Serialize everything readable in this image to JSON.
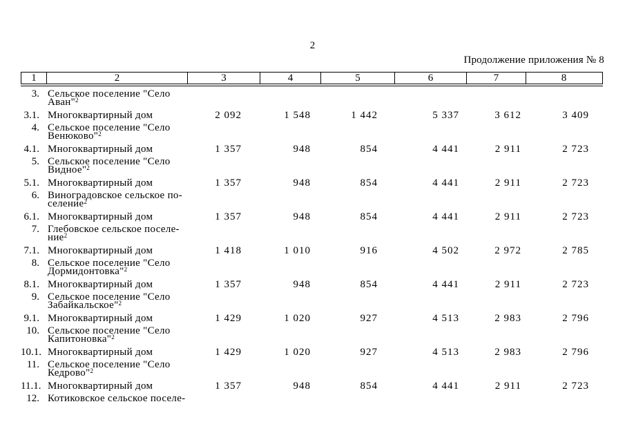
{
  "page": {
    "number": "2",
    "continuation_label": "Продолжение приложения № 8"
  },
  "table": {
    "header": [
      "1",
      "2",
      "3",
      "4",
      "5",
      "6",
      "7",
      "8"
    ],
    "rows": [
      {
        "num": "3.",
        "name_lines": [
          "Сельское поселение \"Село",
          "Аван\""
        ],
        "sup": "2",
        "values": []
      },
      {
        "num": "3.1.",
        "name_lines": [
          "Многоквартирный дом"
        ],
        "sup": "",
        "values": [
          "2 092",
          "1 548",
          "1 442",
          "5 337",
          "3 612",
          "3 409"
        ]
      },
      {
        "num": "4.",
        "name_lines": [
          "Сельское поселение \"Село",
          "Венюково\""
        ],
        "sup": "2",
        "values": []
      },
      {
        "num": "4.1.",
        "name_lines": [
          "Многоквартирный дом"
        ],
        "sup": "",
        "values": [
          "1 357",
          "948",
          "854",
          "4 441",
          "2 911",
          "2 723"
        ]
      },
      {
        "num": "5.",
        "name_lines": [
          "Сельское поселение \"Село",
          "Видное\""
        ],
        "sup": "2",
        "values": []
      },
      {
        "num": "5.1.",
        "name_lines": [
          "Многоквартирный дом"
        ],
        "sup": "",
        "values": [
          "1 357",
          "948",
          "854",
          "4 441",
          "2 911",
          "2 723"
        ]
      },
      {
        "num": "6.",
        "name_lines": [
          "Виноградовское сельское по-",
          "селение"
        ],
        "sup": "2",
        "values": []
      },
      {
        "num": "6.1.",
        "name_lines": [
          "Многоквартирный дом"
        ],
        "sup": "",
        "values": [
          "1 357",
          "948",
          "854",
          "4 441",
          "2 911",
          "2 723"
        ]
      },
      {
        "num": "7.",
        "name_lines": [
          "Глебовское сельское поселе-",
          "ние"
        ],
        "sup": "2",
        "values": []
      },
      {
        "num": "7.1.",
        "name_lines": [
          "Многоквартирный дом"
        ],
        "sup": "",
        "values": [
          "1 418",
          "1 010",
          "916",
          "4 502",
          "2 972",
          "2 785"
        ]
      },
      {
        "num": "8.",
        "name_lines": [
          "Сельское поселение \"Село",
          "Дормидонтовка\""
        ],
        "sup": "2",
        "values": []
      },
      {
        "num": "8.1.",
        "name_lines": [
          "Многоквартирный дом"
        ],
        "sup": "",
        "values": [
          "1 357",
          "948",
          "854",
          "4 441",
          "2 911",
          "2 723"
        ]
      },
      {
        "num": "9.",
        "name_lines": [
          "Сельское поселение \"Село",
          "Забайкальское\""
        ],
        "sup": "2",
        "values": []
      },
      {
        "num": "9.1.",
        "name_lines": [
          "Многоквартирный дом"
        ],
        "sup": "",
        "values": [
          "1 429",
          "1 020",
          "927",
          "4 513",
          "2 983",
          "2 796"
        ]
      },
      {
        "num": "10.",
        "name_lines": [
          "Сельское поселение \"Село",
          "Капитоновка\""
        ],
        "sup": "2",
        "values": []
      },
      {
        "num": "10.1.",
        "name_lines": [
          "Многоквартирный дом"
        ],
        "sup": "",
        "values": [
          "1 429",
          "1 020",
          "927",
          "4 513",
          "2 983",
          "2 796"
        ]
      },
      {
        "num": "11.",
        "name_lines": [
          "Сельское поселение \"Село",
          "Кедрово\""
        ],
        "sup": "2",
        "values": []
      },
      {
        "num": "11.1.",
        "name_lines": [
          "Многоквартирный дом"
        ],
        "sup": "",
        "values": [
          "1 357",
          "948",
          "854",
          "4 441",
          "2 911",
          "2 723"
        ]
      },
      {
        "num": "12.",
        "name_lines": [
          "Котиковское сельское поселе-"
        ],
        "sup": "",
        "values": []
      }
    ]
  }
}
